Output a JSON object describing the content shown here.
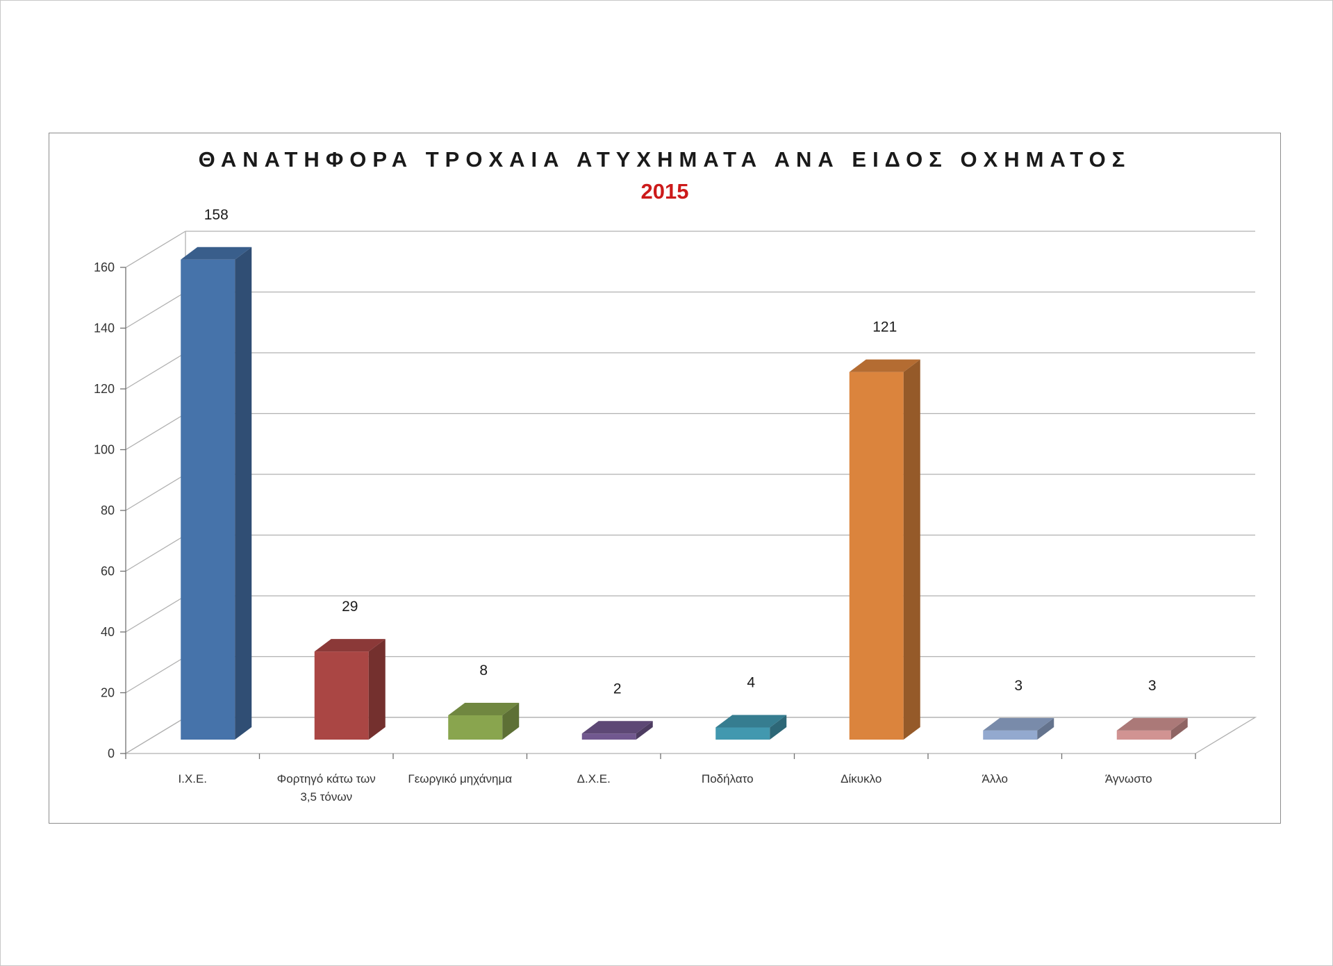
{
  "chart_data": {
    "type": "bar",
    "title": "ΘΑΝΑΤΗΦΟΡΑ ΤΡΟΧΑΙΑ ΑΤΥΧΗΜΑΤΑ ΑΝΑ ΕΙΔΟΣ ΟΧΗΜΑΤΟΣ",
    "subtitle": "2015",
    "categories": [
      "Ι.Χ.Ε.",
      "Φορτηγό κάτω των 3,5 τόνων",
      "Γεωργικό μηχάνημα",
      "Δ.Χ.Ε.",
      "Ποδήλατο",
      "Δίκυκλο",
      "Άλλο",
      "Άγνωστο"
    ],
    "category_lines": [
      [
        "Ι.Χ.Ε."
      ],
      [
        "Φορτηγό κάτω των",
        "3,5 τόνων"
      ],
      [
        "Γεωργικό μηχάνημα"
      ],
      [
        "Δ.Χ.Ε."
      ],
      [
        "Ποδήλατο"
      ],
      [
        "Δίκυκλο"
      ],
      [
        "Άλλο"
      ],
      [
        "Άγνωστο"
      ]
    ],
    "values": [
      158,
      29,
      8,
      2,
      4,
      121,
      3,
      3
    ],
    "data_labels": [
      "158",
      "29",
      "8",
      "2",
      "4",
      "121",
      "3",
      "3"
    ],
    "colors": [
      "#4673aa",
      "#aa4644",
      "#89a54e",
      "#71588f",
      "#4298af",
      "#db843d",
      "#93a9cf",
      "#d19392"
    ],
    "ylim": [
      0,
      160
    ],
    "yticks": [
      0,
      20,
      40,
      60,
      80,
      100,
      120,
      140,
      160
    ],
    "ytick_labels": [
      "0",
      "20",
      "40",
      "60",
      "80",
      "100",
      "120",
      "140",
      "160"
    ],
    "xlabel": "",
    "ylabel": "",
    "grid": true,
    "legend": "none",
    "style": "3d-column"
  }
}
